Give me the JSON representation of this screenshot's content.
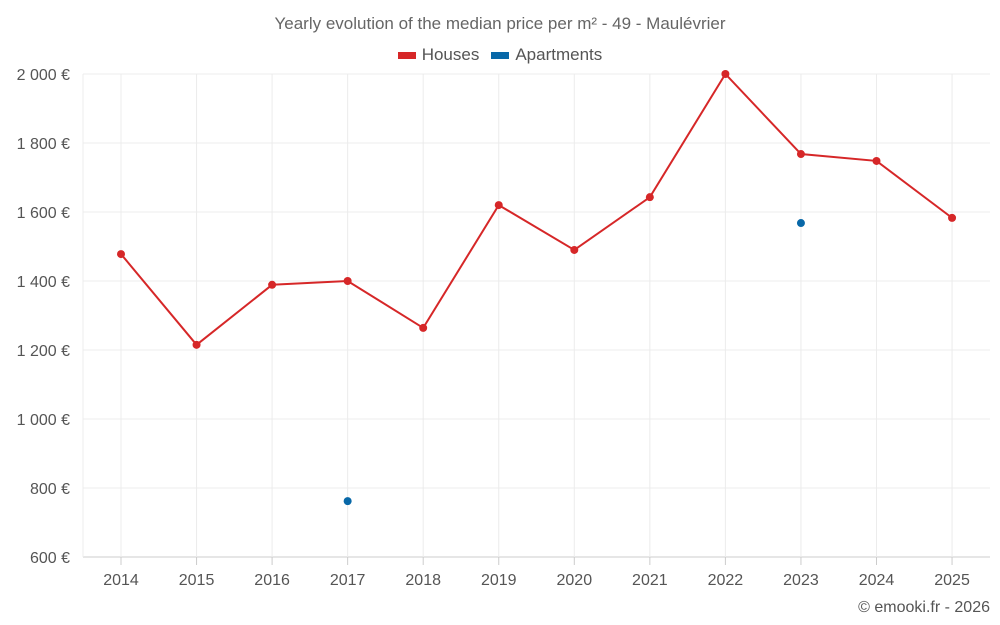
{
  "chart_data": {
    "type": "line",
    "title": "Yearly evolution of the median price per m² - 49 - Maulévrier",
    "xlabel": "",
    "ylabel": "",
    "categories": [
      "2014",
      "2015",
      "2016",
      "2017",
      "2018",
      "2019",
      "2020",
      "2021",
      "2022",
      "2023",
      "2024",
      "2025"
    ],
    "ylim": [
      600,
      2000
    ],
    "yticks": [
      600,
      800,
      1000,
      1200,
      1400,
      1600,
      1800,
      2000
    ],
    "ytick_labels": [
      "600 €",
      "800 €",
      "1 000 €",
      "1 200 €",
      "1 400 €",
      "1 600 €",
      "1 800 €",
      "2 000 €"
    ],
    "grid": true,
    "legend_position": "top-center",
    "series": [
      {
        "name": "Houses",
        "color": "#d62728",
        "values": [
          1478,
          1215,
          1389,
          1400,
          1264,
          1620,
          1490,
          1643,
          2000,
          1768,
          1748,
          1583
        ]
      },
      {
        "name": "Apartments",
        "color": "#0868a8",
        "values": [
          null,
          null,
          null,
          762,
          null,
          null,
          null,
          null,
          null,
          1568,
          null,
          null
        ]
      }
    ]
  },
  "credit": "© emooki.fr - 2026"
}
